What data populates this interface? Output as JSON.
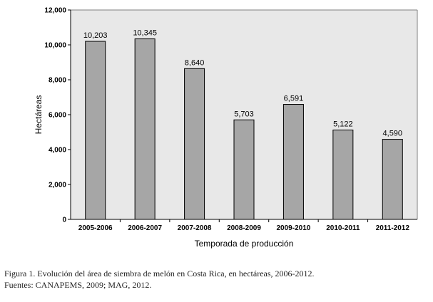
{
  "chart_data": {
    "type": "bar",
    "title": "",
    "xlabel": "Temporada de producción",
    "ylabel": "Hectáreas",
    "categories": [
      "2005-2006",
      "2006-2007",
      "2007-2008",
      "2008-2009",
      "2009-2010",
      "2010-2011",
      "2011-2012"
    ],
    "values": [
      10203,
      10345,
      8640,
      5703,
      6591,
      5122,
      4590
    ],
    "value_labels": [
      "10,203",
      "10,345",
      "8,640",
      "5,703",
      "6,591",
      "5,122",
      "4,590"
    ],
    "ylim": [
      0,
      12000
    ],
    "yticks": [
      0,
      2000,
      4000,
      6000,
      8000,
      10000,
      12000
    ],
    "ytick_labels": [
      "0",
      "2,000",
      "4,000",
      "6,000",
      "8,000",
      "10,000",
      "12,000"
    ],
    "grid": false,
    "legend": "none",
    "colors": {
      "bar_fill": "#a6a6a6",
      "bar_stroke": "#000000",
      "plot_background": "#e8e8e8",
      "frame": "#808080"
    }
  },
  "caption": {
    "figure": "Figura 1. Evolución del área de siembra de melón en Costa Rica, en hectáreas, 2006-2012.",
    "sources": "Fuentes: CANAPEMS, 2009; MAG, 2012."
  }
}
